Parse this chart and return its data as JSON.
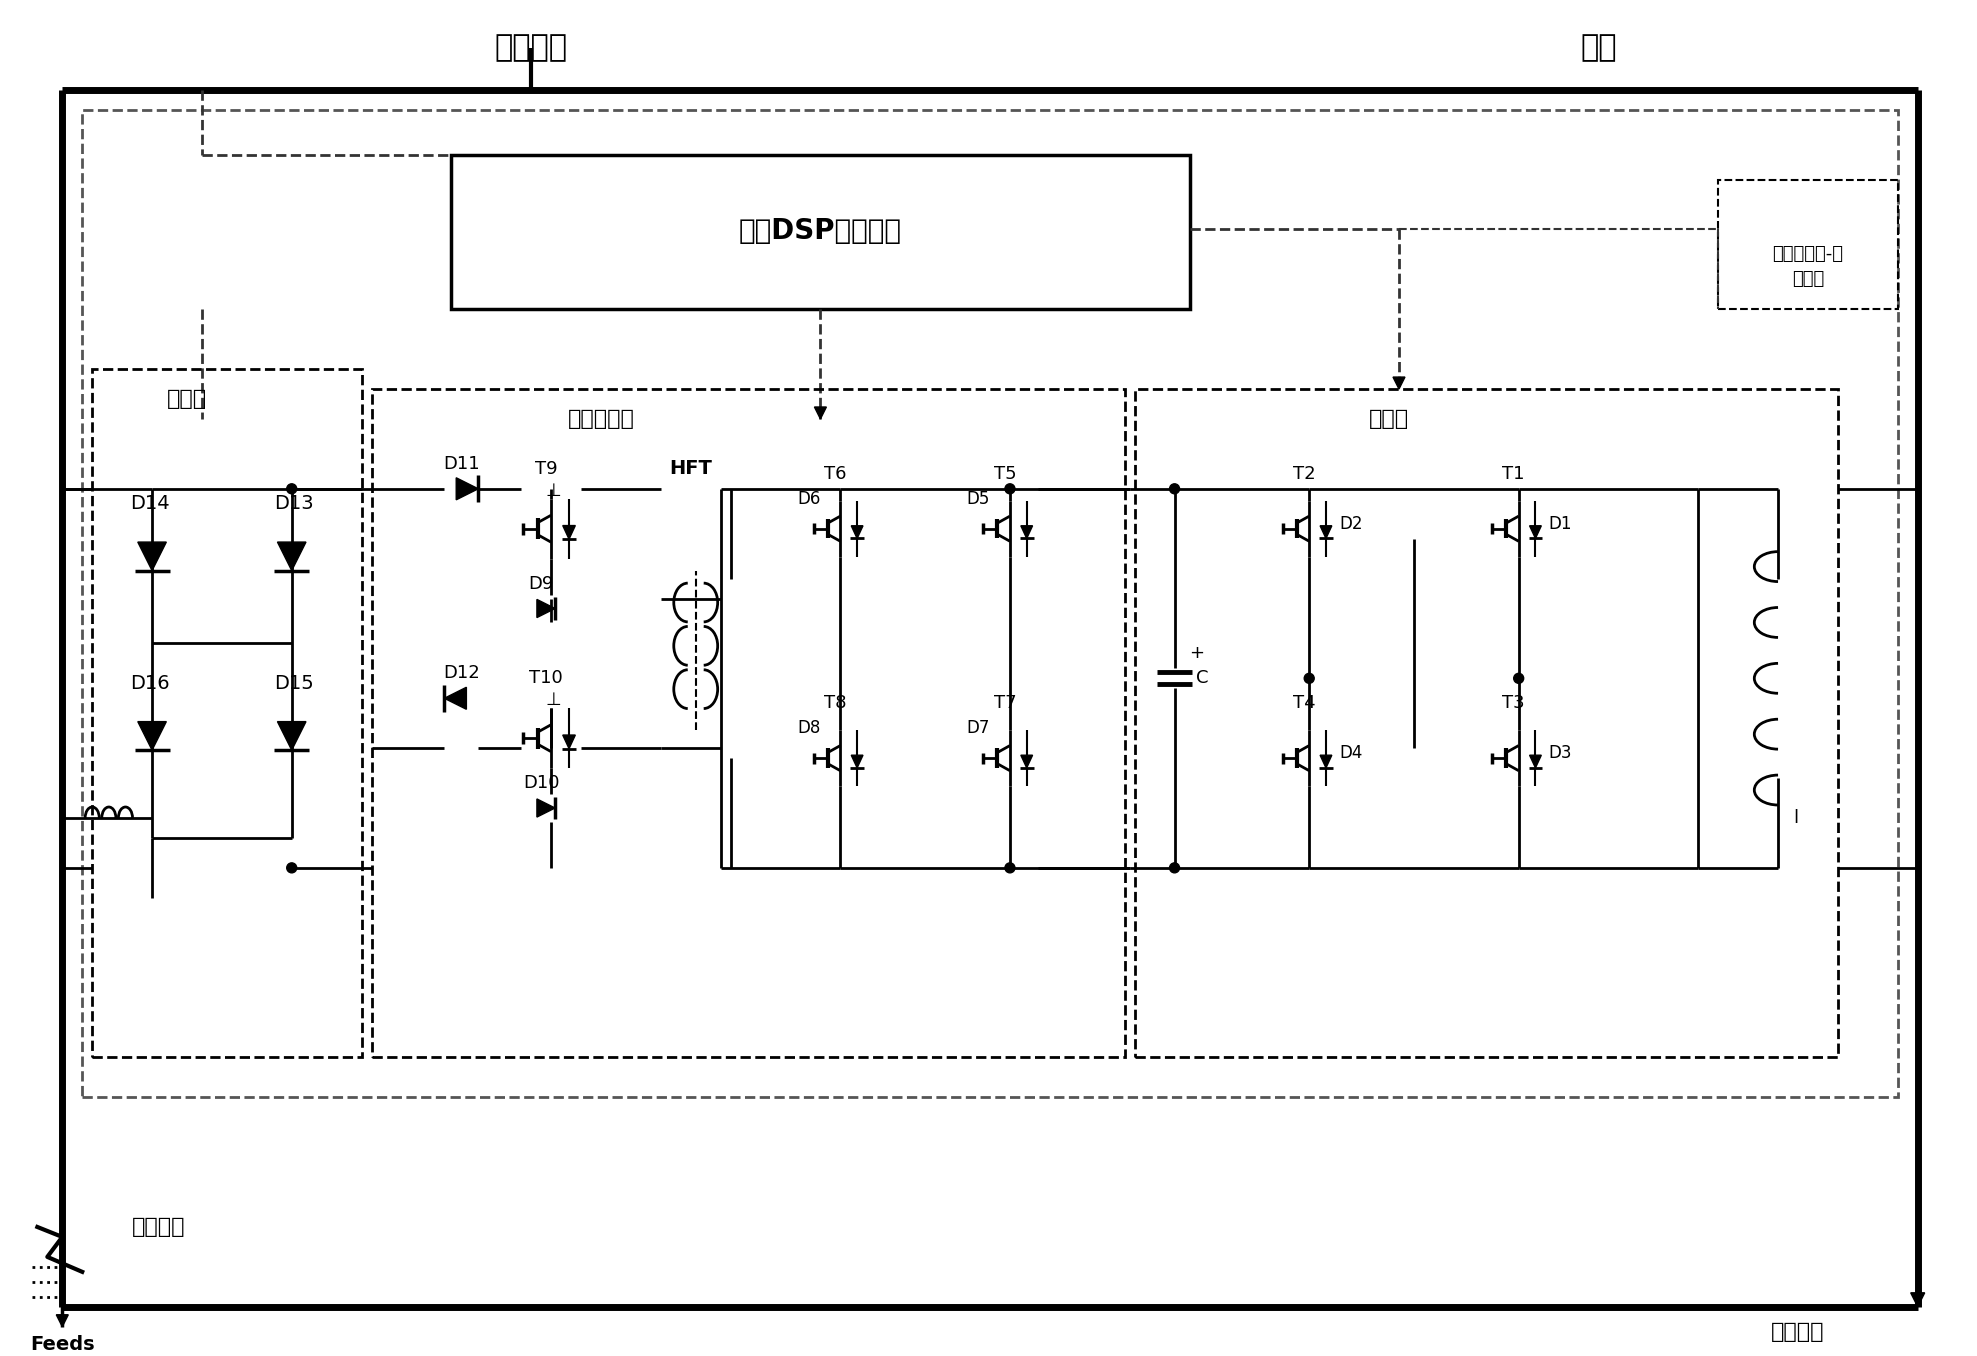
{
  "title_power_system": "电力系统",
  "title_busbar": "母线",
  "title_rectifier": "整流桥",
  "title_current_regulator": "电流调节器",
  "title_inverter": "换流器",
  "title_controller": "基于DSP的控制器",
  "title_system_line1": "桥路型限流-储",
  "title_system_line2": "能系统",
  "label_normal_load": "普通负载",
  "label_sensitive_load": "敏感负载",
  "label_feeds": "Feeds",
  "bg_color": "#ffffff",
  "line_color": "#000000"
}
